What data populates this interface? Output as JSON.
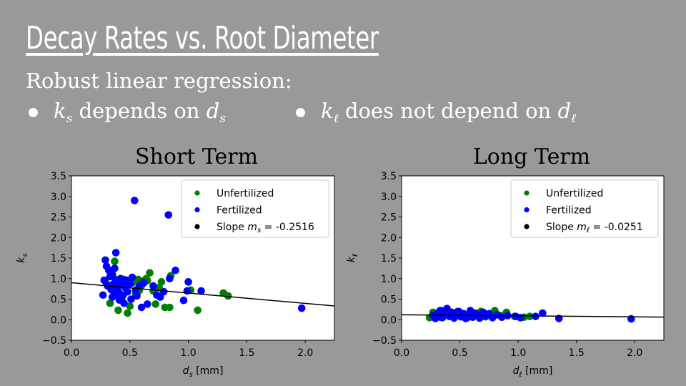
{
  "slide": {
    "title": "Decay Rates vs. Root Diameter",
    "subtitle": "Robust linear regression:",
    "bullets": [
      {
        "symbol": "k",
        "sub": "s",
        "mid": "depends on",
        "symbol2": "d",
        "sub2": "s"
      },
      {
        "symbol": "k",
        "sub": "ℓ",
        "mid": "does not depend on",
        "symbol2": "d",
        "sub2": "ℓ"
      }
    ]
  },
  "colors": {
    "unfertilized": "#008000",
    "fertilized": "#0000ff",
    "fit": "#000000",
    "background": "#999999"
  },
  "chart_data": [
    {
      "type": "scatter",
      "title": "Short Term",
      "xlabel": "d_s  [mm]",
      "ylabel": "k_s",
      "xlim": [
        0.0,
        2.25
      ],
      "ylim": [
        -0.5,
        3.5
      ],
      "xticks": [
        "0.0",
        "0.5",
        "1.0",
        "1.5",
        "2.0"
      ],
      "yticks": [
        "−0.5",
        "0.0",
        "0.5",
        "1.0",
        "1.5",
        "2.0",
        "2.5",
        "3.0",
        "3.5"
      ],
      "legend": {
        "position": "top-right",
        "entries": [
          "Unfertilized",
          "Fertilized",
          "Slope m_s = -0.2516"
        ]
      },
      "fit": {
        "label": "Slope m_s = -0.2516",
        "slope": -0.2516,
        "intercept": 0.9
      },
      "series": [
        {
          "name": "Unfertilized",
          "points": [
            [
              0.3,
              0.88
            ],
            [
              0.33,
              0.4
            ],
            [
              0.35,
              0.72
            ],
            [
              0.37,
              1.42
            ],
            [
              0.38,
              0.98
            ],
            [
              0.39,
              0.95
            ],
            [
              0.4,
              0.23
            ],
            [
              0.4,
              0.82
            ],
            [
              0.42,
              0.62
            ],
            [
              0.43,
              0.53
            ],
            [
              0.45,
              0.98
            ],
            [
              0.46,
              0.78
            ],
            [
              0.48,
              0.16
            ],
            [
              0.5,
              0.33
            ],
            [
              0.52,
              0.9
            ],
            [
              0.55,
              0.63
            ],
            [
              0.57,
              0.98
            ],
            [
              0.58,
              0.71
            ],
            [
              0.6,
              0.83
            ],
            [
              0.62,
              0.95
            ],
            [
              0.64,
              1.0
            ],
            [
              0.65,
              0.95
            ],
            [
              0.67,
              1.14
            ],
            [
              0.7,
              0.7
            ],
            [
              0.72,
              0.38
            ],
            [
              0.75,
              0.78
            ],
            [
              0.77,
              0.92
            ],
            [
              0.8,
              0.3
            ],
            [
              0.84,
              0.3
            ],
            [
              0.85,
              1.07
            ],
            [
              1.02,
              0.72
            ],
            [
              1.08,
              0.23
            ],
            [
              1.3,
              0.65
            ],
            [
              1.34,
              0.58
            ]
          ]
        },
        {
          "name": "Fertilized",
          "points": [
            [
              0.27,
              0.6
            ],
            [
              0.28,
              0.96
            ],
            [
              0.29,
              1.45
            ],
            [
              0.3,
              1.3
            ],
            [
              0.31,
              0.82
            ],
            [
              0.32,
              1.2
            ],
            [
              0.33,
              1.05
            ],
            [
              0.34,
              0.73
            ],
            [
              0.35,
              0.55
            ],
            [
              0.35,
              1.1
            ],
            [
              0.36,
              0.87
            ],
            [
              0.37,
              0.6
            ],
            [
              0.37,
              1.25
            ],
            [
              0.38,
              0.95
            ],
            [
              0.38,
              1.63
            ],
            [
              0.39,
              0.77
            ],
            [
              0.4,
              0.69
            ],
            [
              0.41,
              0.48
            ],
            [
              0.42,
              1.0
            ],
            [
              0.43,
              0.86
            ],
            [
              0.44,
              0.59
            ],
            [
              0.45,
              0.4
            ],
            [
              0.46,
              0.78
            ],
            [
              0.47,
              0.96
            ],
            [
              0.48,
              0.68
            ],
            [
              0.5,
              0.87
            ],
            [
              0.51,
              0.5
            ],
            [
              0.52,
              1.03
            ],
            [
              0.54,
              2.9
            ],
            [
              0.55,
              0.72
            ],
            [
              0.56,
              0.58
            ],
            [
              0.58,
              0.83
            ],
            [
              0.6,
              0.3
            ],
            [
              0.62,
              0.9
            ],
            [
              0.65,
              0.38
            ],
            [
              0.7,
              0.82
            ],
            [
              0.73,
              0.6
            ],
            [
              0.76,
              0.55
            ],
            [
              0.79,
              0.68
            ],
            [
              0.83,
              2.55
            ],
            [
              0.84,
              1.0
            ],
            [
              0.89,
              1.2
            ],
            [
              0.96,
              0.47
            ],
            [
              0.99,
              0.7
            ],
            [
              1.0,
              0.92
            ],
            [
              1.11,
              0.7
            ],
            [
              1.97,
              0.28
            ]
          ]
        }
      ]
    },
    {
      "type": "scatter",
      "title": "Long Term",
      "xlabel": "d_ℓ  [mm]",
      "ylabel": "k_ℓ",
      "xlim": [
        0.0,
        2.25
      ],
      "ylim": [
        -0.5,
        3.5
      ],
      "xticks": [
        "0.0",
        "0.5",
        "1.0",
        "1.5",
        "2.0"
      ],
      "yticks": [
        "−0.5",
        "0.0",
        "0.5",
        "1.0",
        "1.5",
        "2.0",
        "2.5",
        "3.0",
        "3.5"
      ],
      "legend": {
        "position": "top-right",
        "entries": [
          "Unfertilized",
          "Fertilized",
          "Slope m_ℓ = -0.0251"
        ]
      },
      "fit": {
        "label": "Slope m_ℓ = -0.0251",
        "slope": -0.0251,
        "intercept": 0.12
      },
      "series": [
        {
          "name": "Unfertilized",
          "points": [
            [
              0.24,
              0.05
            ],
            [
              0.27,
              0.18
            ],
            [
              0.3,
              0.1
            ],
            [
              0.33,
              0.06
            ],
            [
              0.36,
              0.22
            ],
            [
              0.4,
              0.15
            ],
            [
              0.44,
              0.08
            ],
            [
              0.48,
              0.2
            ],
            [
              0.52,
              0.12
            ],
            [
              0.56,
              0.04
            ],
            [
              0.6,
              0.18
            ],
            [
              0.64,
              0.1
            ],
            [
              0.68,
              0.2
            ],
            [
              0.72,
              0.07
            ],
            [
              0.76,
              0.15
            ],
            [
              0.8,
              0.22
            ],
            [
              0.85,
              0.1
            ],
            [
              0.9,
              0.18
            ],
            [
              0.97,
              0.08
            ],
            [
              1.05,
              0.06
            ],
            [
              1.1,
              0.08
            ]
          ]
        },
        {
          "name": "Fertilized",
          "points": [
            [
              0.27,
              0.1
            ],
            [
              0.29,
              0.03
            ],
            [
              0.31,
              0.16
            ],
            [
              0.33,
              0.22
            ],
            [
              0.35,
              0.05
            ],
            [
              0.37,
              0.12
            ],
            [
              0.39,
              0.27
            ],
            [
              0.41,
              0.08
            ],
            [
              0.43,
              0.18
            ],
            [
              0.45,
              0.04
            ],
            [
              0.47,
              0.13
            ],
            [
              0.49,
              0.2
            ],
            [
              0.51,
              0.07
            ],
            [
              0.53,
              0.15
            ],
            [
              0.55,
              0.03
            ],
            [
              0.57,
              0.1
            ],
            [
              0.59,
              0.22
            ],
            [
              0.61,
              0.06
            ],
            [
              0.63,
              0.16
            ],
            [
              0.65,
              0.12
            ],
            [
              0.67,
              0.04
            ],
            [
              0.7,
              0.18
            ],
            [
              0.72,
              0.09
            ],
            [
              0.75,
              0.14
            ],
            [
              0.78,
              0.05
            ],
            [
              0.82,
              0.12
            ],
            [
              0.86,
              0.06
            ],
            [
              0.91,
              0.1
            ],
            [
              0.98,
              0.08
            ],
            [
              1.02,
              0.05
            ],
            [
              1.15,
              0.08
            ],
            [
              1.21,
              0.16
            ],
            [
              1.35,
              0.03
            ],
            [
              1.97,
              0.02
            ]
          ]
        }
      ]
    }
  ]
}
